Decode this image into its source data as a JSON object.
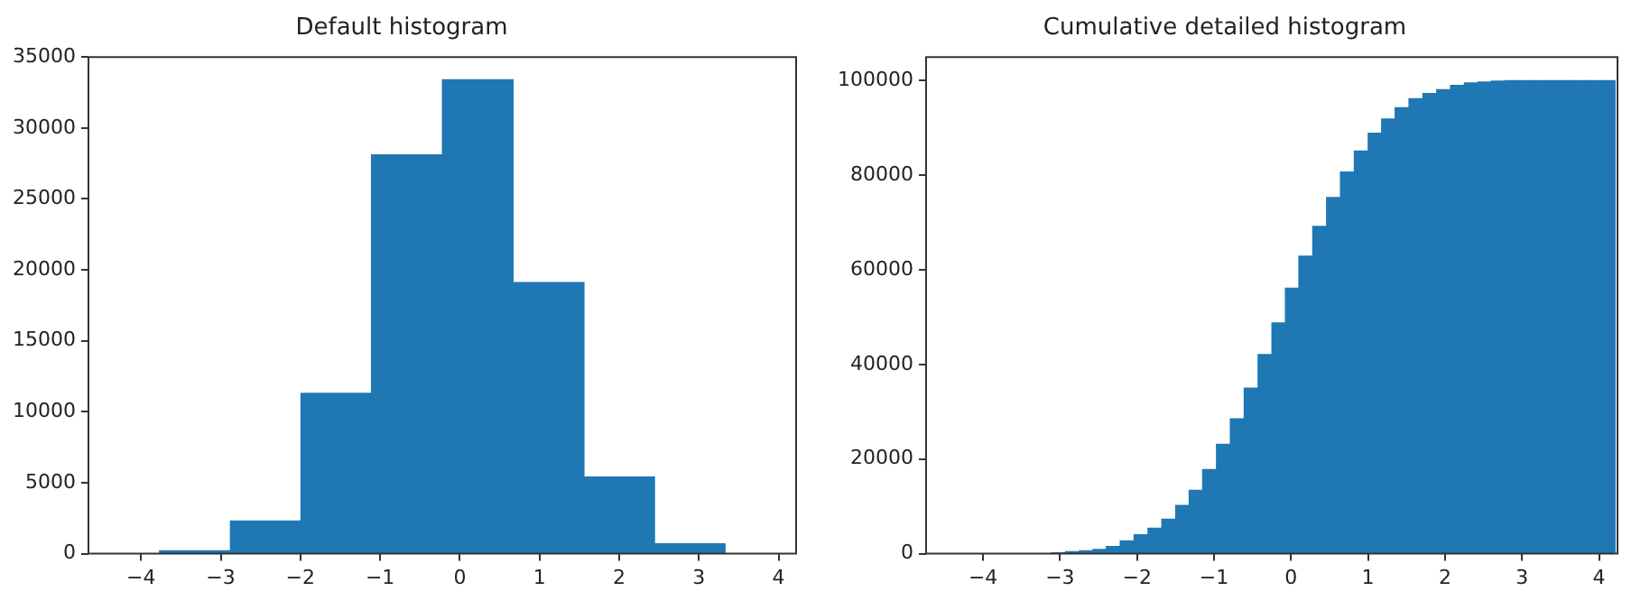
{
  "chart_data": [
    {
      "type": "histogram",
      "title": "Default histogram",
      "color": "#1f77b4",
      "bins": [
        -3.77,
        -2.88,
        -1.99,
        -1.11,
        -0.22,
        0.67,
        1.56,
        2.44,
        3.33
      ],
      "values": [
        200,
        2300,
        11300,
        28100,
        33400,
        19100,
        5400,
        700
      ],
      "xlim": [
        -4.66,
        4.22
      ],
      "xticks": [
        {
          "value": -4,
          "label": "−4"
        },
        {
          "value": -3,
          "label": "−3"
        },
        {
          "value": -2,
          "label": "−2"
        },
        {
          "value": -1,
          "label": "−1"
        },
        0,
        1,
        2,
        3,
        4
      ],
      "ylim": [
        0,
        35000
      ],
      "yticks": [
        0,
        5000,
        10000,
        15000,
        20000,
        25000,
        30000,
        35000
      ],
      "grid": false,
      "legend": false
    },
    {
      "type": "histogram",
      "title": "Cumulative detailed histogram",
      "color": "#1f77b4",
      "bins": [
        -3.11,
        -2.93,
        -2.75,
        -2.57,
        -2.4,
        -2.22,
        -2.04,
        -1.86,
        -1.68,
        -1.5,
        -1.32,
        -1.15,
        -0.97,
        -0.79,
        -0.61,
        -0.43,
        -0.25,
        -0.07,
        0.1,
        0.28,
        0.46,
        0.64,
        0.82,
        1.0,
        1.18,
        1.35,
        1.53,
        1.71,
        1.89,
        2.07,
        2.25,
        2.43,
        2.6,
        2.78,
        2.96,
        3.14,
        3.32,
        3.5,
        3.68,
        3.85,
        4.03,
        4.21
      ],
      "values": [
        200,
        400,
        600,
        900,
        1500,
        2700,
        4000,
        5400,
        7300,
        10200,
        13400,
        17800,
        23100,
        28500,
        35000,
        42100,
        48800,
        56100,
        62900,
        69200,
        75300,
        80700,
        85100,
        88900,
        91900,
        94300,
        96200,
        97300,
        98100,
        99000,
        99500,
        99700,
        99900,
        100000,
        100000,
        100000,
        100000,
        100000,
        100000,
        100000,
        100000
      ],
      "xlim": [
        -4.74,
        4.24
      ],
      "xticks": [
        {
          "value": -4,
          "label": "−4"
        },
        {
          "value": -3,
          "label": "−3"
        },
        {
          "value": -2,
          "label": "−2"
        },
        {
          "value": -1,
          "label": "−1"
        },
        0,
        1,
        2,
        3,
        4
      ],
      "ylim": [
        0,
        105000
      ],
      "yticks": [
        0,
        20000,
        40000,
        60000,
        80000,
        100000
      ],
      "grid": false,
      "legend": false
    }
  ]
}
